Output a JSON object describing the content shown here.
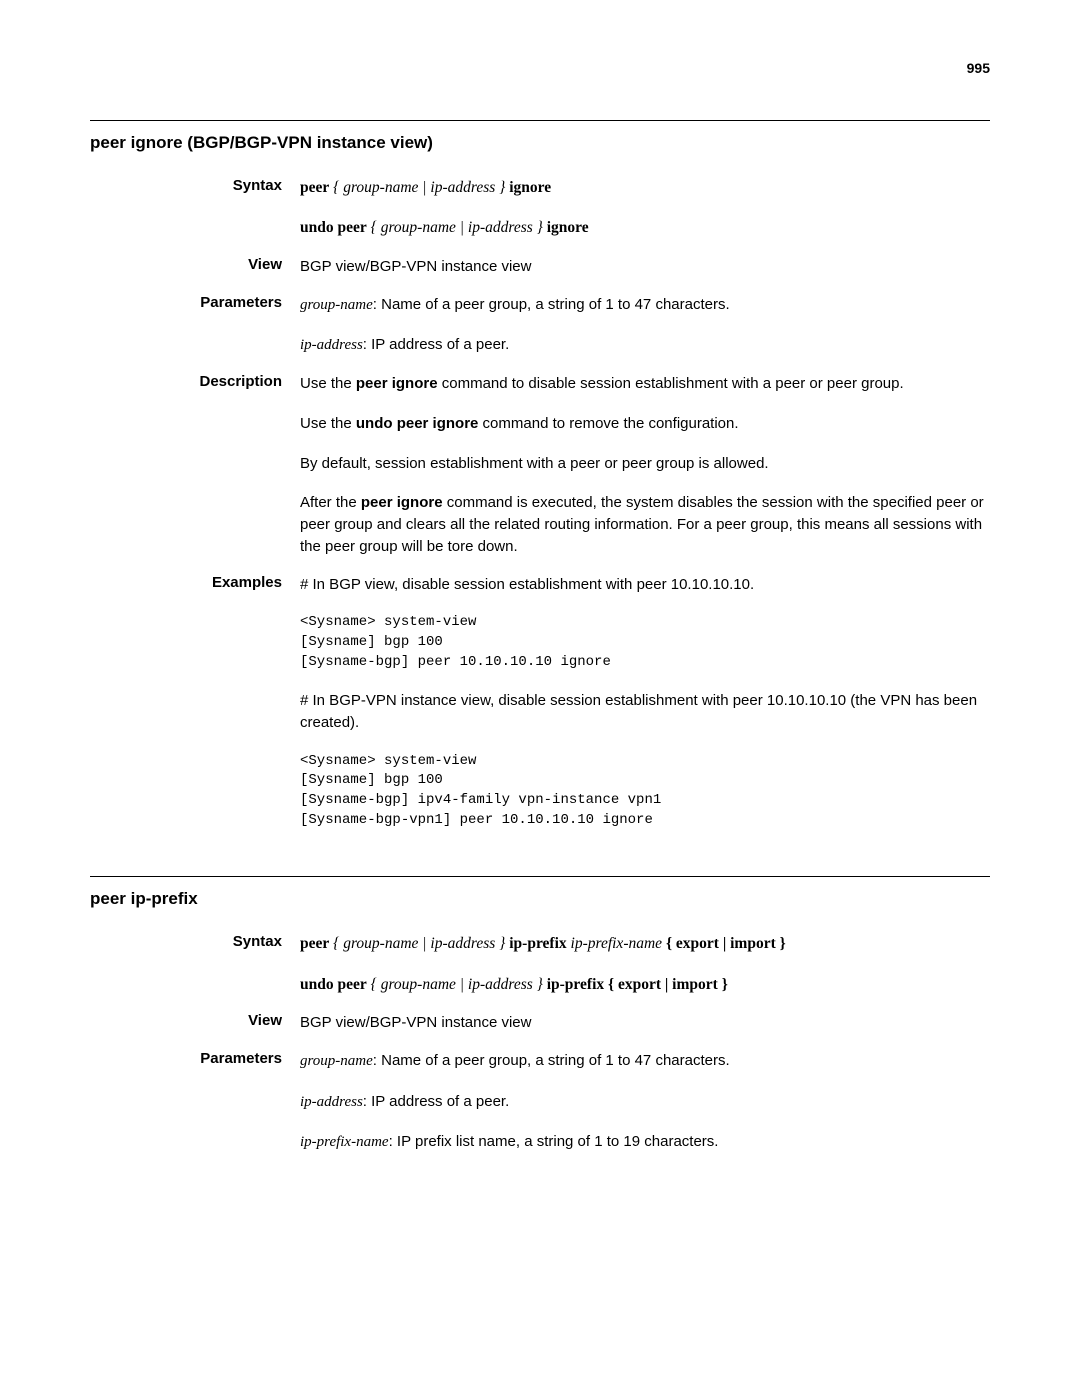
{
  "pageNumber": "995",
  "section1": {
    "title": "peer ignore (BGP/BGP-VPN instance view)",
    "syntax": {
      "label": "Syntax",
      "line1": {
        "pre": "peer",
        "arg": "{ group-name | ip-address }",
        "post": "ignore"
      },
      "line2": {
        "pre": "undo peer",
        "arg": "{ group-name | ip-address }",
        "post": "ignore"
      }
    },
    "view": {
      "label": "View",
      "text": "BGP view/BGP-VPN instance view"
    },
    "parameters": {
      "label": "Parameters",
      "p1_name": "group-name",
      "p1_text": ": Name of a peer group, a string of 1 to 47 characters.",
      "p2_name": "ip-address",
      "p2_text": ": IP address of a peer."
    },
    "description": {
      "label": "Description",
      "d1_pre": "Use the ",
      "d1_bold": "peer ignore",
      "d1_post": " command to disable session establishment with a peer or peer group.",
      "d2_pre": "Use the ",
      "d2_bold": "undo peer ignore",
      "d2_post": " command to remove the configuration.",
      "d3": "By default, session establishment with a peer or peer group is allowed.",
      "d4_pre": "After the ",
      "d4_bold": "peer ignore",
      "d4_post": " command is executed, the system disables the session with the specified peer or peer group and clears all the related routing information. For a peer group, this means all sessions with the peer group will be tore down."
    },
    "examples": {
      "label": "Examples",
      "e1": "# In BGP view, disable session establishment with peer 10.10.10.10.",
      "code1": "<Sysname> system-view\n[Sysname] bgp 100\n[Sysname-bgp] peer 10.10.10.10 ignore",
      "e2": "# In BGP-VPN instance view, disable session establishment with peer 10.10.10.10 (the VPN has been created).",
      "code2": "<Sysname> system-view\n[Sysname] bgp 100\n[Sysname-bgp] ipv4-family vpn-instance vpn1\n[Sysname-bgp-vpn1] peer 10.10.10.10 ignore"
    }
  },
  "section2": {
    "title": "peer ip-prefix",
    "syntax": {
      "label": "Syntax",
      "line1": {
        "pre": "peer",
        "arg1": "{ group-name | ip-address }",
        "mid": "ip-prefix",
        "arg2": "ip-prefix-name",
        "post": "{ export | import }"
      },
      "line2": {
        "pre": "undo peer",
        "arg1": "{ group-name | ip-address }",
        "mid": "ip-prefix",
        "post": "{ export | import }"
      }
    },
    "view": {
      "label": "View",
      "text": "BGP view/BGP-VPN instance view"
    },
    "parameters": {
      "label": "Parameters",
      "p1_name": "group-name",
      "p1_text": ": Name of a peer group, a string of 1 to 47 characters.",
      "p2_name": "ip-address",
      "p2_text": ": IP address of a peer.",
      "p3_name": "ip-prefix-name",
      "p3_text": ": IP prefix list name, a string of 1 to 19 characters."
    }
  }
}
